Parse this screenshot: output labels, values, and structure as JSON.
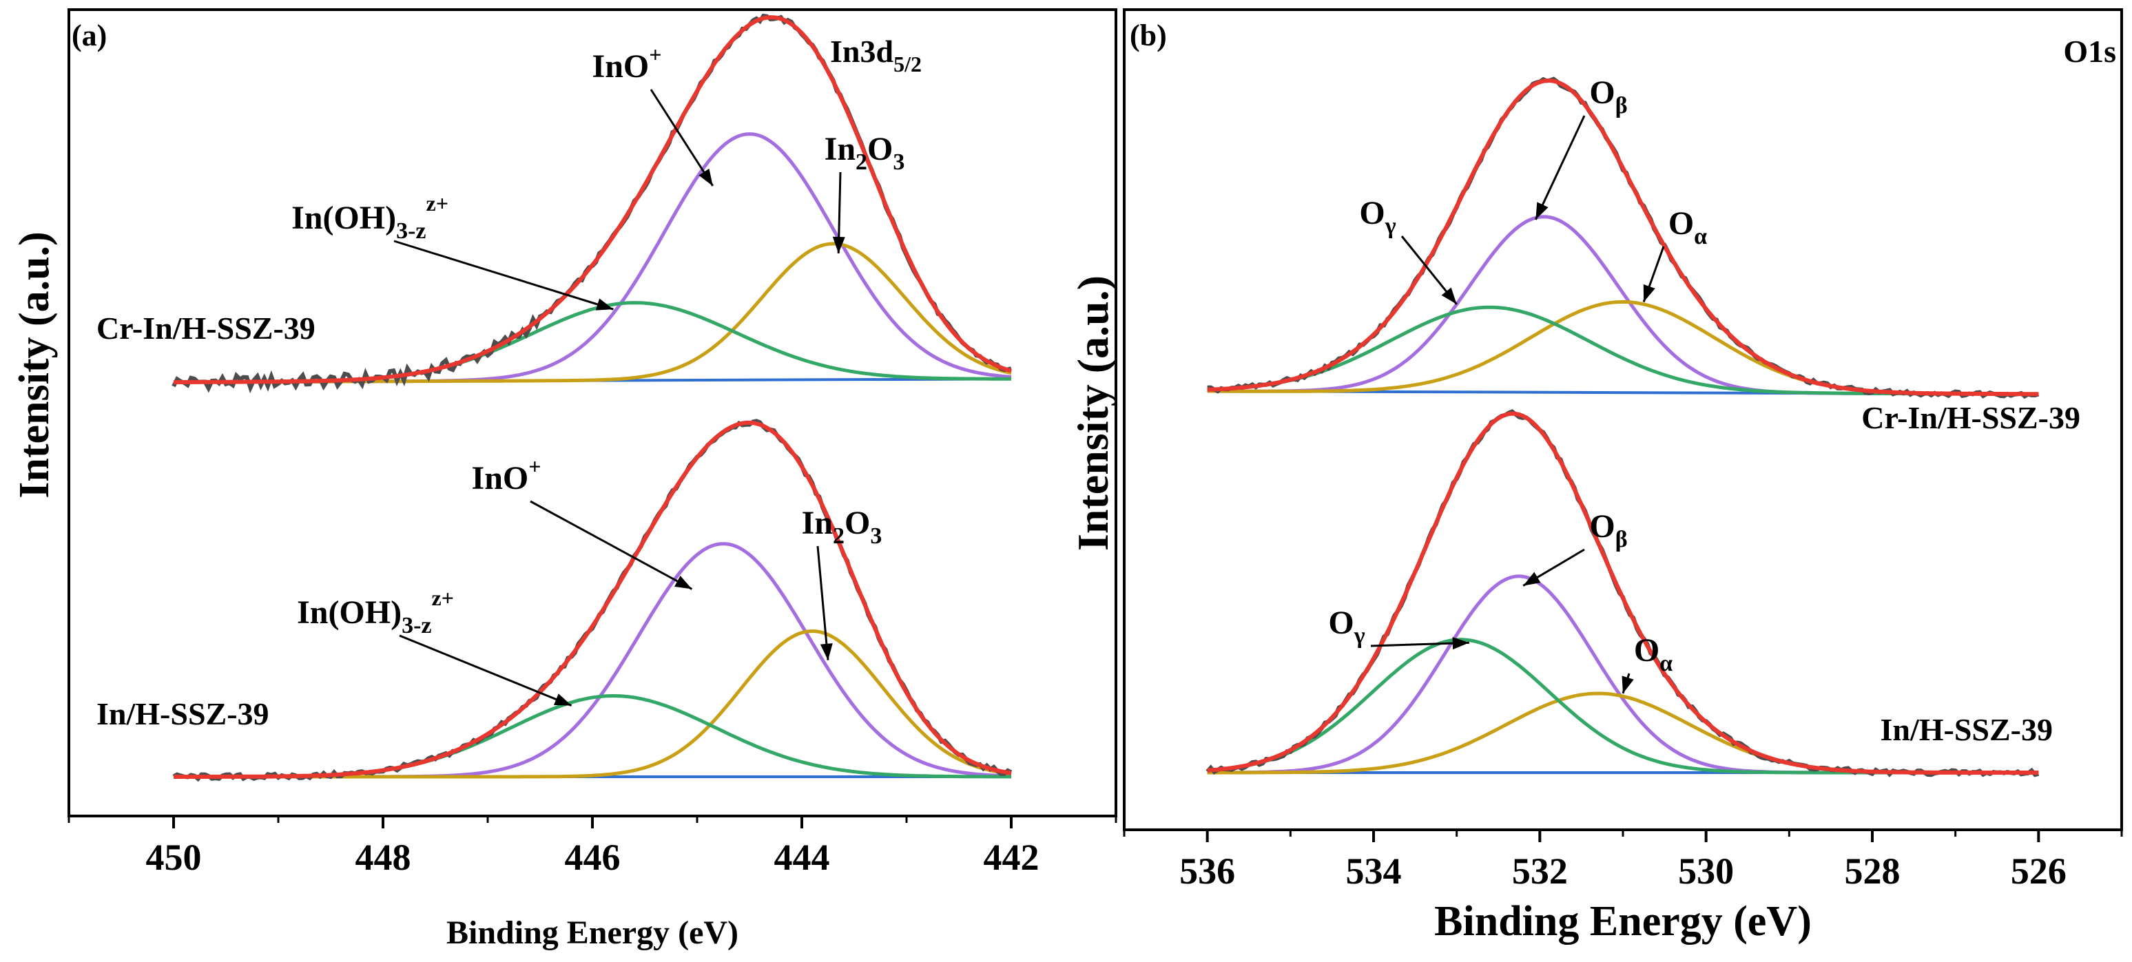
{
  "colors": {
    "raw": "#4d4d4d",
    "envelope": "#e8372e",
    "inox": "#a46ee0",
    "in2o3": "#c9a015",
    "inoh": "#33a866",
    "background": "#2e6fd1",
    "axis": "#000000"
  },
  "chart_data": [
    {
      "type": "line",
      "panel_label": "(a)",
      "title": "In3d",
      "title_sub": "5/2",
      "xlabel": "Binding Energy (eV)",
      "ylabel": "Intensity (a.u.)",
      "xlim": [
        451,
        441
      ],
      "xticks": [
        {
          "value": 450,
          "label": "450"
        },
        {
          "value": 448,
          "label": "448"
        },
        {
          "value": 446,
          "label": "446"
        },
        {
          "value": 444,
          "label": "444"
        },
        {
          "value": 442,
          "label": "442"
        }
      ],
      "xrange_data": [
        450,
        442
      ],
      "traces": [
        {
          "sample": "Cr-In/H-SSZ-39",
          "baseline_at_high_be": 0.0,
          "baseline_at_low_be": 0.01,
          "components": [
            {
              "name": "InO+",
              "center": 444.5,
              "fwhm": 1.9,
              "height": 0.76,
              "color": "inox"
            },
            {
              "name": "In2O3",
              "center": 443.7,
              "fwhm": 1.6,
              "height": 0.42,
              "color": "in2o3"
            },
            {
              "name": "In(OH)3-z z+",
              "center": 445.6,
              "fwhm": 2.3,
              "height": 0.24,
              "color": "inoh"
            }
          ],
          "labels": [
            {
              "text": "InO",
              "sup": "+",
              "arrow_to": [
                444.85,
                0.6
              ]
            },
            {
              "text": "In",
              "sub1": "2",
              "mid": "O",
              "sub2": "3",
              "arrow_to": [
                443.65,
                0.39
              ]
            },
            {
              "text": "In(OH)",
              "sub1": "3-z",
              "sup": "z+",
              "arrow_to": [
                445.8,
                0.22
              ]
            }
          ]
        },
        {
          "sample": "In/H-SSZ-39",
          "baseline_at_high_be": 0.0,
          "baseline_at_low_be": 0.0,
          "components": [
            {
              "name": "InO+",
              "center": 444.75,
              "fwhm": 1.9,
              "height": 0.72,
              "color": "inox"
            },
            {
              "name": "In2O3",
              "center": 443.9,
              "fwhm": 1.6,
              "height": 0.45,
              "color": "in2o3"
            },
            {
              "name": "In(OH)3-z z+",
              "center": 445.8,
              "fwhm": 2.3,
              "height": 0.25,
              "color": "inoh"
            }
          ],
          "labels": [
            {
              "text": "InO",
              "sup": "+",
              "arrow_to": [
                445.05,
                0.58
              ]
            },
            {
              "text": "In",
              "sub1": "2",
              "mid": "O",
              "sub2": "3",
              "arrow_to": [
                443.75,
                0.36
              ]
            },
            {
              "text": "In(OH)",
              "sub1": "3-z",
              "sup": "z+",
              "arrow_to": [
                446.2,
                0.22
              ]
            }
          ]
        }
      ]
    },
    {
      "type": "line",
      "panel_label": "(b)",
      "title": "O1s",
      "title_sub": "",
      "xlabel": "Binding Energy (eV)",
      "ylabel": "Intensity (a.u.)",
      "xlim": [
        537,
        525
      ],
      "xticks": [
        {
          "value": 536,
          "label": "536"
        },
        {
          "value": 534,
          "label": "534"
        },
        {
          "value": 532,
          "label": "532"
        },
        {
          "value": 530,
          "label": "530"
        },
        {
          "value": 528,
          "label": "528"
        },
        {
          "value": 526,
          "label": "526"
        }
      ],
      "xrange_data": [
        536,
        526
      ],
      "traces": [
        {
          "sample": "Cr-In/H-SSZ-39",
          "baseline_at_high_be": 0.0,
          "baseline_at_low_be": -0.01,
          "components": [
            {
              "name": "Oβ",
              "center": 531.95,
              "fwhm": 2.1,
              "height": 0.6,
              "color": "inox"
            },
            {
              "name": "Oα",
              "center": 531.0,
              "fwhm": 2.6,
              "height": 0.31,
              "color": "in2o3"
            },
            {
              "name": "Oγ",
              "center": 532.6,
              "fwhm": 2.8,
              "height": 0.29,
              "color": "inoh"
            }
          ],
          "labels": [
            {
              "text": "O",
              "sub1": "β",
              "arrow_to": [
                532.05,
                0.59
              ]
            },
            {
              "text": "O",
              "sub1": "α",
              "arrow_to": [
                530.75,
                0.31
              ]
            },
            {
              "text": "O",
              "sub1": "γ",
              "arrow_to": [
                533.0,
                0.3
              ]
            }
          ]
        },
        {
          "sample": "In/H-SSZ-39",
          "baseline_at_high_be": 0.0,
          "baseline_at_low_be": 0.0,
          "components": [
            {
              "name": "Oβ",
              "center": 532.25,
              "fwhm": 2.1,
              "height": 0.62,
              "color": "inox"
            },
            {
              "name": "Oα",
              "center": 531.3,
              "fwhm": 2.6,
              "height": 0.25,
              "color": "in2o3"
            },
            {
              "name": "Oγ",
              "center": 532.95,
              "fwhm": 2.5,
              "height": 0.42,
              "color": "inoh"
            }
          ],
          "labels": [
            {
              "text": "O",
              "sub1": "β",
              "arrow_to": [
                532.2,
                0.59
              ]
            },
            {
              "text": "O",
              "sub1": "α",
              "arrow_to": [
                531.0,
                0.25
              ]
            },
            {
              "text": "O",
              "sub1": "γ",
              "arrow_to": [
                532.85,
                0.41
              ]
            }
          ]
        }
      ]
    }
  ]
}
